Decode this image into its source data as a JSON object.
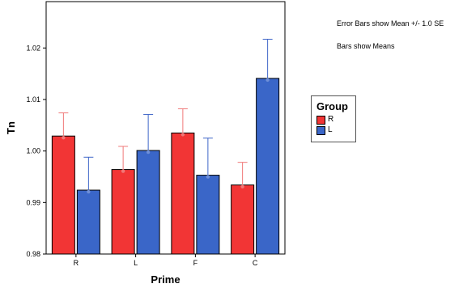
{
  "notes": {
    "error_bars": "Error Bars show Mean +/- 1.0 SE",
    "bars": "Bars show Means"
  },
  "legend": {
    "title": "Group"
  },
  "chart_data": {
    "type": "bar",
    "title": "",
    "xlabel": "Prime",
    "ylabel": "Tn",
    "categories": [
      "R",
      "L",
      "F",
      "C"
    ],
    "ylim": [
      0.98,
      1.029
    ],
    "yticks": [
      0.98,
      0.99,
      1.0,
      1.01,
      1.02
    ],
    "ytick_labels": [
      "0.98",
      "0.99",
      "1.00",
      "1.01",
      "1.02"
    ],
    "grid": false,
    "legend_position": "right",
    "series": [
      {
        "name": "R",
        "color": "#f23535",
        "values": [
          1.0029,
          0.9964,
          1.0035,
          0.9934
        ],
        "error_plus": [
          0.0045,
          0.0045,
          0.0047,
          0.0044
        ]
      },
      {
        "name": "L",
        "color": "#3a66c8",
        "values": [
          0.9924,
          1.0001,
          0.9953,
          1.0141
        ],
        "error_plus": [
          0.0064,
          0.007,
          0.0072,
          0.0076
        ]
      }
    ]
  }
}
